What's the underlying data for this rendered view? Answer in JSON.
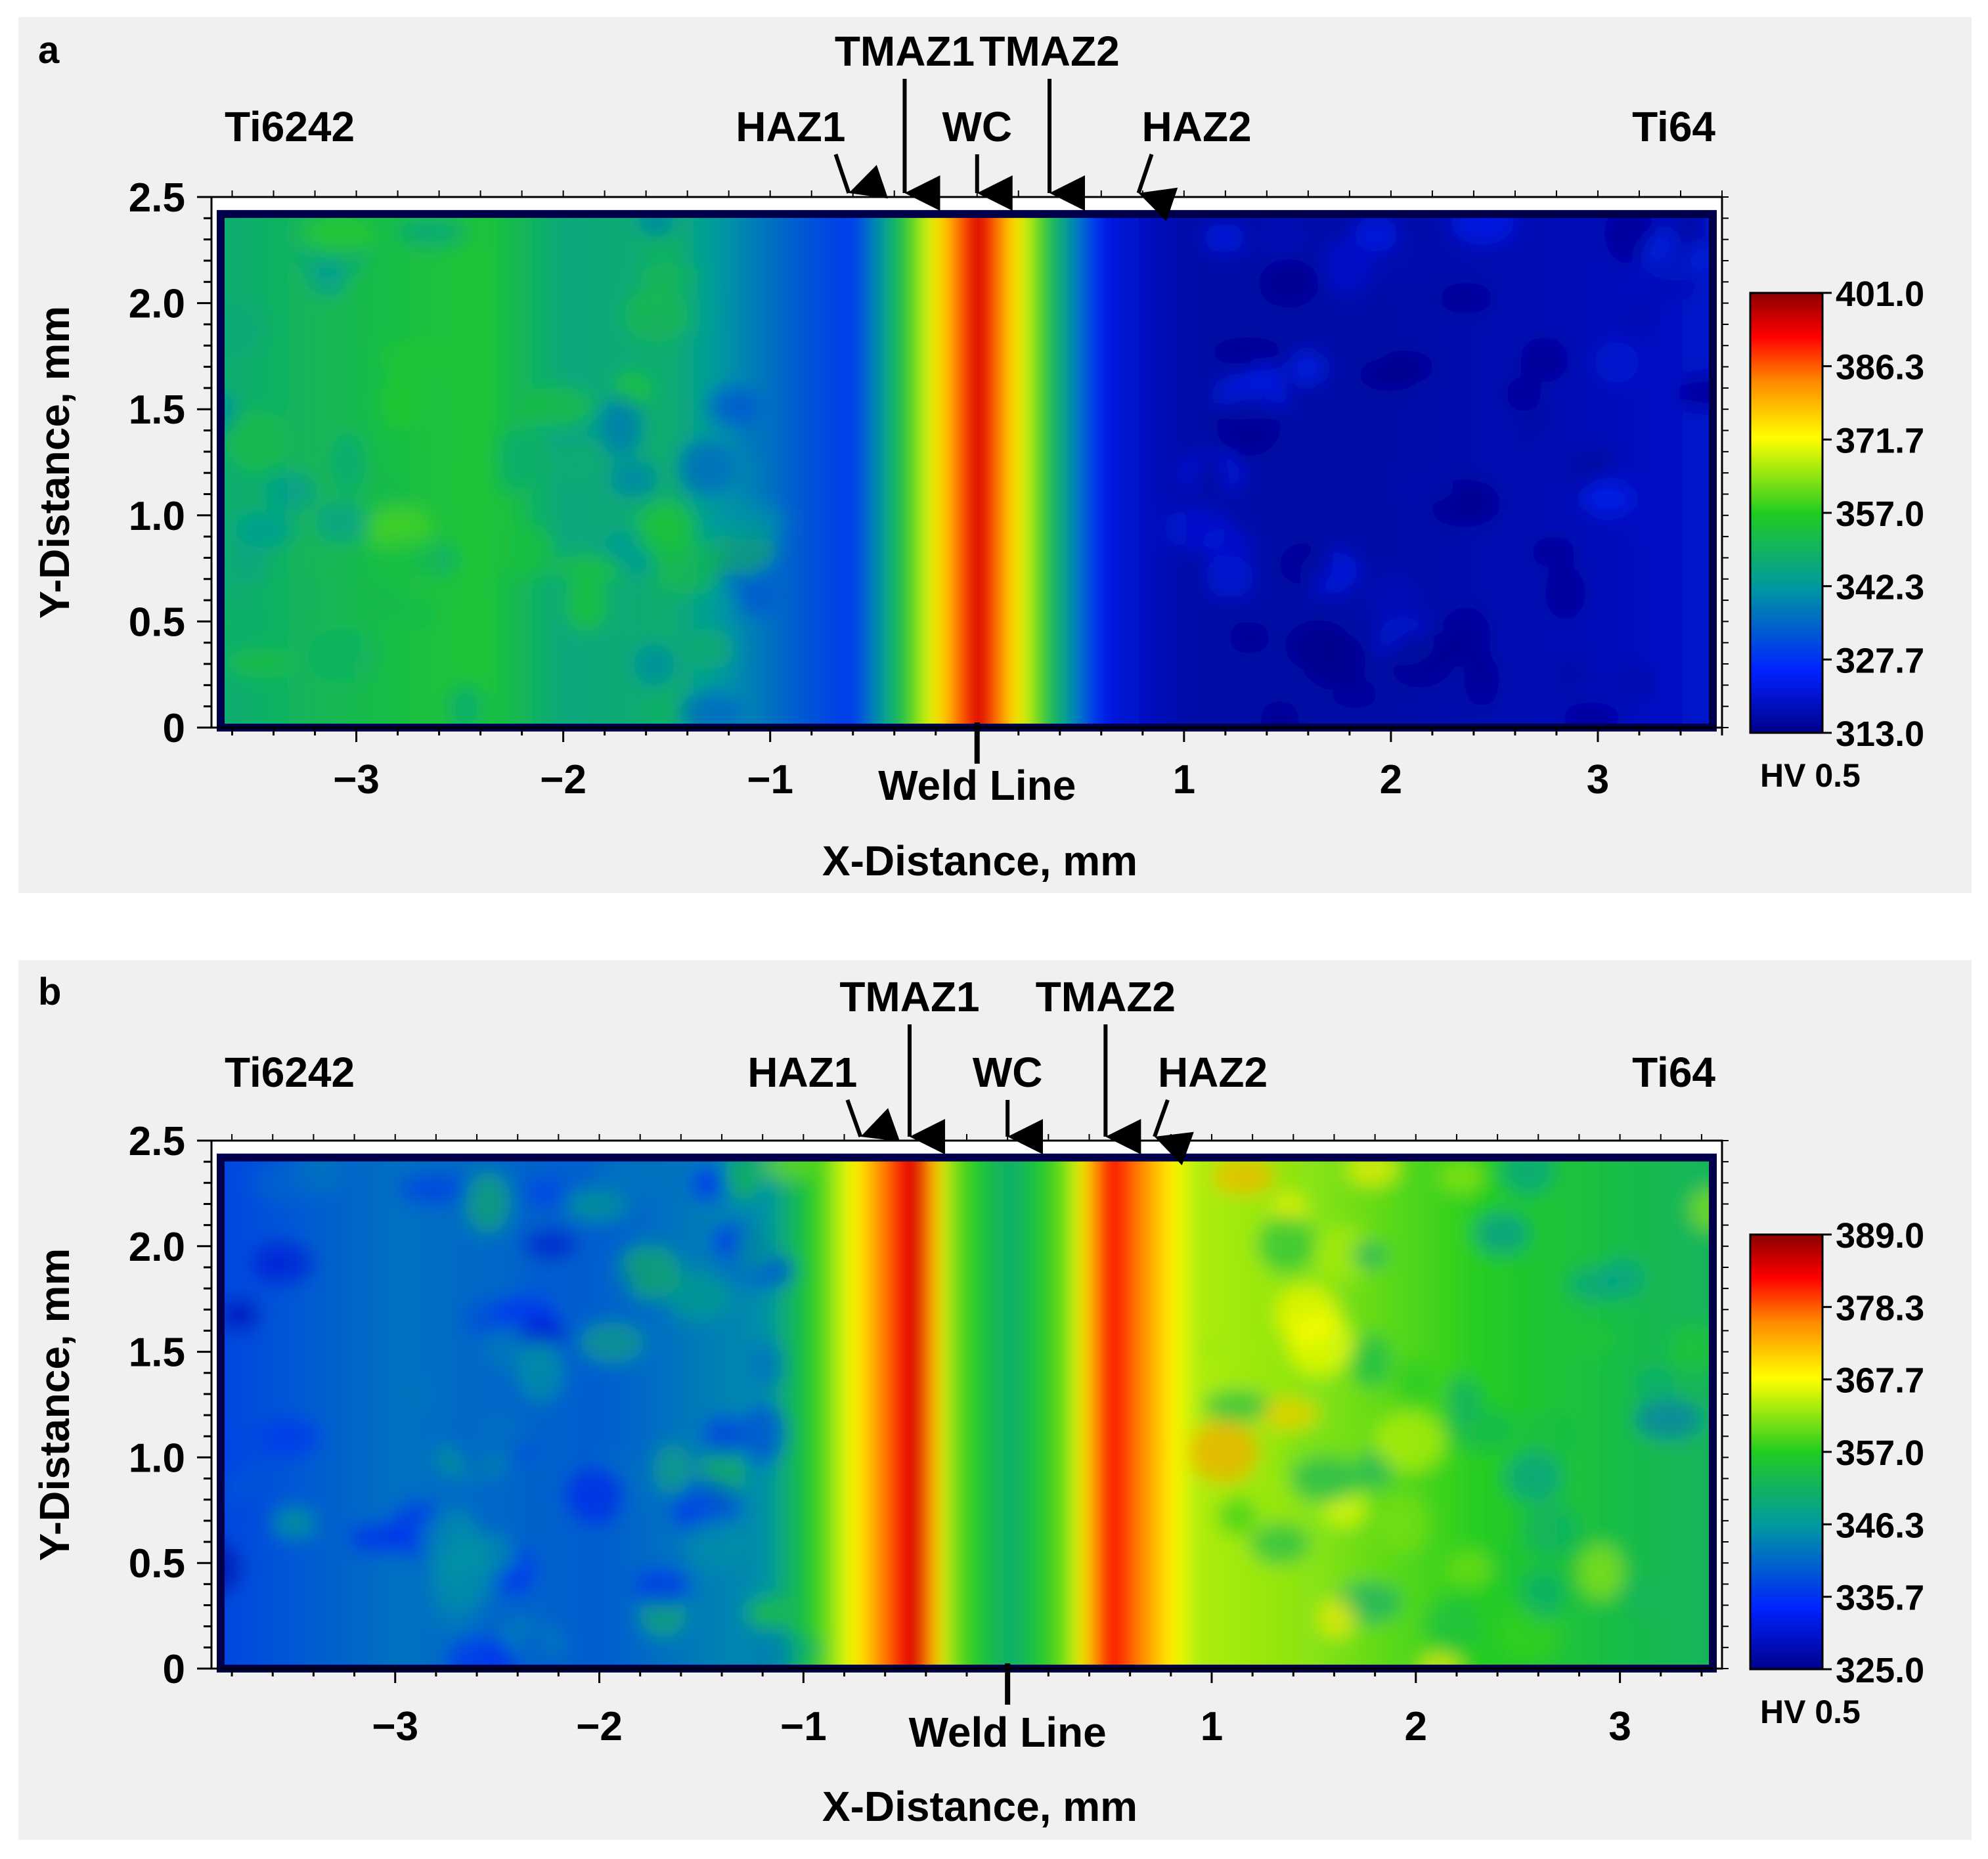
{
  "chart_data": [
    {
      "panel_label": "a",
      "type": "heatmap",
      "title": "",
      "xlabel": "X-Distance, mm",
      "ylabel": "Y-Distance, mm",
      "xlim": [
        -3.7,
        3.6
      ],
      "ylim": [
        0,
        2.5
      ],
      "x_ticks": [
        -3,
        -2,
        -1,
        1,
        2,
        3
      ],
      "y_ticks": [
        0,
        0.5,
        1.0,
        1.5,
        2.0,
        2.5
      ],
      "x_tick_labels": [
        "−3",
        "−2",
        "−1",
        "1",
        "2",
        "3"
      ],
      "y_tick_labels": [
        "0",
        "0.5",
        "1.0",
        "1.5",
        "2.0",
        "2.5"
      ],
      "weld_line": {
        "x": 0,
        "label": "Weld Line"
      },
      "left_material": "Ti6242",
      "right_material": "Ti64",
      "zones": [
        {
          "label": "HAZ1",
          "x": -0.62
        },
        {
          "label": "TMAZ1",
          "x": -0.35
        },
        {
          "label": "WC",
          "x": 0.0
        },
        {
          "label": "TMAZ2",
          "x": 0.35
        },
        {
          "label": "HAZ2",
          "x": 0.78
        }
      ],
      "colorbar": {
        "unit": "HV 0.5",
        "min": 313.0,
        "max": 401.0,
        "tick_labels": [
          "401.0",
          "386.3",
          "371.7",
          "357.0",
          "342.3",
          "327.7",
          "313.0"
        ]
      },
      "hardness_profile_hv": [
        {
          "x": -3.6,
          "hv": 348
        },
        {
          "x": -3.0,
          "hv": 352
        },
        {
          "x": -2.4,
          "hv": 355
        },
        {
          "x": -2.0,
          "hv": 346
        },
        {
          "x": -1.5,
          "hv": 348
        },
        {
          "x": -1.0,
          "hv": 336
        },
        {
          "x": -0.6,
          "hv": 328
        },
        {
          "x": -0.3,
          "hv": 362
        },
        {
          "x": 0.0,
          "hv": 398
        },
        {
          "x": 0.3,
          "hv": 358
        },
        {
          "x": 0.6,
          "hv": 322
        },
        {
          "x": 1.0,
          "hv": 316
        },
        {
          "x": 2.0,
          "hv": 316
        },
        {
          "x": 3.0,
          "hv": 318
        },
        {
          "x": 3.6,
          "hv": 320
        }
      ]
    },
    {
      "panel_label": "b",
      "type": "heatmap",
      "title": "",
      "xlabel": "X-Distance, mm",
      "ylabel": "Y-Distance, mm",
      "xlim": [
        -3.9,
        3.5
      ],
      "ylim": [
        0,
        2.5
      ],
      "x_ticks": [
        -3,
        -2,
        -1,
        1,
        2,
        3
      ],
      "y_ticks": [
        0,
        0.5,
        1.0,
        1.5,
        2.0,
        2.5
      ],
      "x_tick_labels": [
        "−3",
        "−2",
        "−1",
        "1",
        "2",
        "3"
      ],
      "y_tick_labels": [
        "0",
        "0.5",
        "1.0",
        "1.5",
        "2.0",
        "2.5"
      ],
      "weld_line": {
        "x": 0,
        "label": "Weld Line"
      },
      "left_material": "Ti6242",
      "right_material": "Ti64",
      "zones": [
        {
          "label": "HAZ1",
          "x": -0.72
        },
        {
          "label": "TMAZ1",
          "x": -0.48
        },
        {
          "label": "WC",
          "x": 0.0
        },
        {
          "label": "TMAZ2",
          "x": 0.48
        },
        {
          "label": "HAZ2",
          "x": 0.72
        }
      ],
      "colorbar": {
        "unit": "HV 0.5",
        "min": 325.0,
        "max": 389.0,
        "tick_labels": [
          "389.0",
          "378.3",
          "367.7",
          "357.0",
          "346.3",
          "335.7",
          "325.0"
        ]
      },
      "hardness_profile_hv": [
        {
          "x": -3.8,
          "hv": 338
        },
        {
          "x": -3.0,
          "hv": 342
        },
        {
          "x": -2.0,
          "hv": 340
        },
        {
          "x": -1.2,
          "hv": 345
        },
        {
          "x": -0.9,
          "hv": 360
        },
        {
          "x": -0.6,
          "hv": 378
        },
        {
          "x": -0.45,
          "hv": 387
        },
        {
          "x": -0.3,
          "hv": 362
        },
        {
          "x": 0.0,
          "hv": 350
        },
        {
          "x": 0.3,
          "hv": 362
        },
        {
          "x": 0.48,
          "hv": 384
        },
        {
          "x": 0.65,
          "hv": 376
        },
        {
          "x": 0.9,
          "hv": 364
        },
        {
          "x": 1.5,
          "hv": 362
        },
        {
          "x": 2.5,
          "hv": 356
        },
        {
          "x": 3.4,
          "hv": 352
        }
      ]
    }
  ]
}
